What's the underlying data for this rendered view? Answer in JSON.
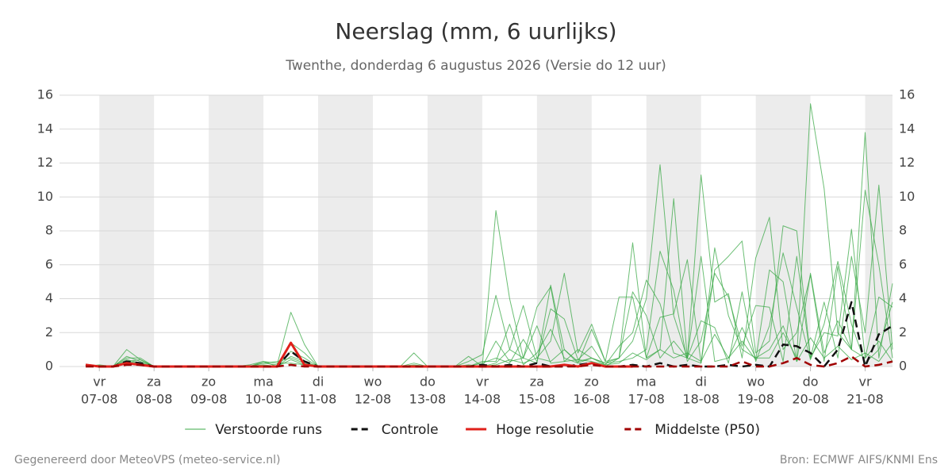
{
  "chart_data": {
    "type": "line",
    "title": "Neerslag (mm, 6 uurlijks)",
    "subtitle": "Twenthe, donderdag  6 augustus 2026 (Versie do 12 uur)",
    "credit": "Gegenereerd door MeteoVPS (meteo-service.nl)",
    "source": "Bron: ECMWF AIFS/KNMI Ens",
    "categories": [
      null,
      "07-08",
      null,
      null,
      null,
      "08-08",
      null,
      null,
      null,
      "09-08",
      null,
      null,
      null,
      "10-08",
      null,
      null,
      null,
      "11-08",
      null,
      null,
      null,
      "12-08",
      null,
      null,
      null,
      "13-08",
      null,
      null,
      null,
      "14-08",
      null,
      null,
      null,
      "15-08",
      null,
      null,
      null,
      "16-08",
      null,
      null,
      null,
      "17-08",
      null,
      null,
      null,
      "18-08",
      null,
      null,
      null,
      "19-08",
      null,
      null,
      null,
      "20-08",
      null,
      null,
      null,
      "21-08",
      null,
      null
    ],
    "day_names": [
      null,
      "vr",
      null,
      null,
      null,
      "za",
      null,
      null,
      null,
      "zo",
      null,
      null,
      null,
      "ma",
      null,
      null,
      null,
      "di",
      null,
      null,
      null,
      "wo",
      null,
      null,
      null,
      "do",
      null,
      null,
      null,
      "vr",
      null,
      null,
      null,
      "za",
      null,
      null,
      null,
      "zo",
      null,
      null,
      null,
      "ma",
      null,
      null,
      null,
      "di",
      null,
      null,
      null,
      "wo",
      null,
      null,
      null,
      "do",
      null,
      null,
      null,
      "vr",
      null,
      null
    ],
    "ylim": [
      0,
      16
    ],
    "yticks": [
      0,
      2,
      4,
      6,
      8,
      10,
      12,
      14,
      16
    ],
    "y2lim": [
      0,
      16
    ],
    "y2ticks": [
      0,
      2,
      4,
      6,
      8,
      10,
      12,
      14,
      16
    ],
    "grid": true,
    "legend": "bottom",
    "series": [
      {
        "name": "Verstoorde runs",
        "color": "#3aa845",
        "style": "solid",
        "members": [
          [
            0.1,
            0,
            0,
            1.0,
            0.4,
            0,
            0,
            0,
            0,
            0,
            0,
            0,
            0,
            0.2,
            0.1,
            3.2,
            1.3,
            0,
            0,
            0,
            0,
            0,
            0,
            0,
            0.1,
            0,
            0,
            0,
            0.1,
            0,
            9.2,
            4,
            0.5,
            0.2,
            4.8,
            1,
            0.3,
            0.5,
            0.2,
            0.5,
            1.5,
            4,
            11.9,
            3,
            0.5,
            0.2,
            7,
            3,
            1,
            0.5,
            0.5,
            2,
            0.5,
            15.5,
            10.5,
            2,
            1,
            0.5,
            1.5,
            0.3
          ],
          [
            0,
            0,
            0,
            0.6,
            0.3,
            0,
            0,
            0,
            0,
            0,
            0,
            0,
            0.1,
            0.3,
            0,
            1.4,
            0.8,
            0,
            0,
            0,
            0,
            0,
            0,
            0,
            0.8,
            0,
            0,
            0,
            0.3,
            0.7,
            4.2,
            1,
            3.6,
            0.5,
            1.5,
            5.5,
            0.8,
            2.5,
            0.3,
            4.1,
            4.1,
            0.5,
            1,
            9.9,
            0.5,
            11.3,
            3.8,
            4.3,
            0.5,
            6.4,
            8.8,
            1,
            2,
            5.4,
            0.3,
            5.9,
            1,
            13.8,
            0.5,
            4.9
          ],
          [
            0.1,
            0,
            0,
            0.3,
            0.2,
            0,
            0,
            0,
            0,
            0,
            0,
            0,
            0,
            0.1,
            0,
            0.9,
            0.5,
            0,
            0,
            0,
            0,
            0,
            0,
            0,
            0,
            0,
            0,
            0,
            0.6,
            0,
            1.5,
            0.3,
            0.5,
            2.4,
            0.2,
            0.3,
            0.4,
            1.2,
            0,
            0.5,
            7.3,
            0.5,
            2.9,
            3.1,
            6.3,
            0.2,
            5.7,
            6.5,
            7.4,
            0.8,
            1.5,
            8.3,
            8.0,
            0.5,
            3.8,
            0.5,
            6.5,
            2,
            10.7,
            1
          ],
          [
            0,
            0,
            0,
            0.4,
            0.2,
            0,
            0,
            0,
            0,
            0,
            0,
            0,
            0,
            0.2,
            0.3,
            0.5,
            0.2,
            0,
            0,
            0,
            0,
            0,
            0,
            0,
            0,
            0,
            0,
            0,
            0,
            0.2,
            0.5,
            0.2,
            1.6,
            0.3,
            3.4,
            2.8,
            0.4,
            0.3,
            0.1,
            1.2,
            2,
            5.1,
            3.7,
            0.8,
            0.5,
            6.5,
            0.3,
            0.5,
            1.5,
            0.4,
            5.7,
            5,
            0.3,
            5.5,
            0.8,
            2.7,
            1,
            10.4,
            6,
            0.5
          ],
          [
            0,
            0.1,
            0,
            0.2,
            0.1,
            0,
            0,
            0,
            0,
            0,
            0,
            0,
            0,
            0,
            0,
            0.4,
            0.1,
            0,
            0,
            0,
            0,
            0,
            0,
            0,
            0.2,
            0,
            0,
            0,
            0,
            0,
            0.2,
            1,
            0.5,
            3.5,
            4.7,
            0.3,
            1,
            0.5,
            0.2,
            0.3,
            0.5,
            1,
            6.8,
            4.5,
            0.3,
            1.5,
            5.5,
            4.1,
            1.2,
            3.6,
            3.5,
            0.3,
            6.5,
            0.5,
            2,
            1.8,
            8.1,
            0.5,
            4.1,
            3.5
          ],
          [
            0,
            0,
            0,
            0.5,
            0.5,
            0,
            0,
            0,
            0,
            0,
            0,
            0,
            0,
            0,
            0,
            0.6,
            0.3,
            0,
            0,
            0,
            0,
            0,
            0,
            0,
            0,
            0,
            0,
            0,
            0,
            0.3,
            0.3,
            2.5,
            0.1,
            0.8,
            2.2,
            0.5,
            0.2,
            2.2,
            0.3,
            0.5,
            4.4,
            3,
            0.5,
            1.5,
            0.5,
            2.7,
            2.3,
            0.2,
            4.4,
            0.3,
            2.4,
            6.7,
            3.5,
            0.4,
            2.5,
            6.2,
            2.5,
            0.2,
            1,
            3.8
          ],
          [
            0,
            0,
            0,
            0.3,
            0.4,
            0,
            0,
            0,
            0,
            0,
            0,
            0,
            0,
            0.3,
            0.2,
            0.2,
            0.1,
            0,
            0,
            0,
            0,
            0,
            0,
            0,
            0,
            0,
            0,
            0,
            0,
            0,
            0.1,
            0.4,
            0.2,
            0.5,
            0.3,
            1,
            0.2,
            0.5,
            0.1,
            0.2,
            0.8,
            0.4,
            1,
            0.5,
            0.8,
            0.3,
            1.9,
            0.5,
            2.3,
            0.5,
            1,
            2.4,
            0.3,
            1.7,
            0.5,
            1.2,
            0.4,
            0.8,
            0.3,
            1.4
          ]
        ]
      },
      {
        "name": "Controle",
        "color": "#111111",
        "style": "dashed",
        "values": [
          0.1,
          0,
          0,
          0.3,
          0.2,
          0,
          0,
          0,
          0,
          0,
          0,
          0,
          0,
          0,
          0,
          0.9,
          0.3,
          0,
          0,
          0,
          0,
          0,
          0,
          0,
          0,
          0,
          0,
          0,
          0,
          0.1,
          0,
          0.1,
          0,
          0.2,
          0,
          0,
          0.1,
          0.2,
          0,
          0,
          0.1,
          0,
          0.2,
          0,
          0.1,
          0,
          0,
          0.1,
          0,
          0.1,
          0,
          1.3,
          1.2,
          0.8,
          0,
          1,
          3.8,
          0,
          1.9,
          2.4
        ]
      },
      {
        "name": "Hoge resolutie",
        "color": "#e0201b",
        "style": "solid",
        "values": [
          0.1,
          0,
          0,
          0.2,
          0.1,
          0,
          0,
          0,
          0,
          0,
          0,
          0,
          0,
          0,
          0,
          1.4,
          0.1,
          0,
          0,
          0,
          0,
          0,
          0,
          0,
          0,
          0,
          0,
          0,
          0,
          0,
          0,
          0,
          0,
          0,
          0,
          0.1,
          0,
          0.2,
          0,
          0,
          0,
          null,
          null,
          null,
          null,
          null,
          null,
          null,
          null,
          null,
          null,
          null,
          null,
          null,
          null,
          null,
          null,
          null,
          null,
          null
        ]
      },
      {
        "name": "Middelste (P50)",
        "color": "#a00000",
        "style": "dashed",
        "values": [
          0,
          0,
          0,
          0.1,
          0.1,
          0,
          0,
          0,
          0,
          0,
          0,
          0,
          0,
          0,
          0,
          0.1,
          0,
          0,
          0,
          0,
          0,
          0,
          0,
          0,
          0,
          0,
          0,
          0,
          0,
          0,
          0,
          0,
          0,
          0,
          0,
          0,
          0,
          0.1,
          0,
          0,
          0,
          0,
          0,
          0,
          0,
          0,
          0,
          0,
          0.3,
          0,
          0,
          0.2,
          0.5,
          0.1,
          0,
          0.2,
          0.6,
          0,
          0.1,
          0.3
        ]
      }
    ]
  }
}
